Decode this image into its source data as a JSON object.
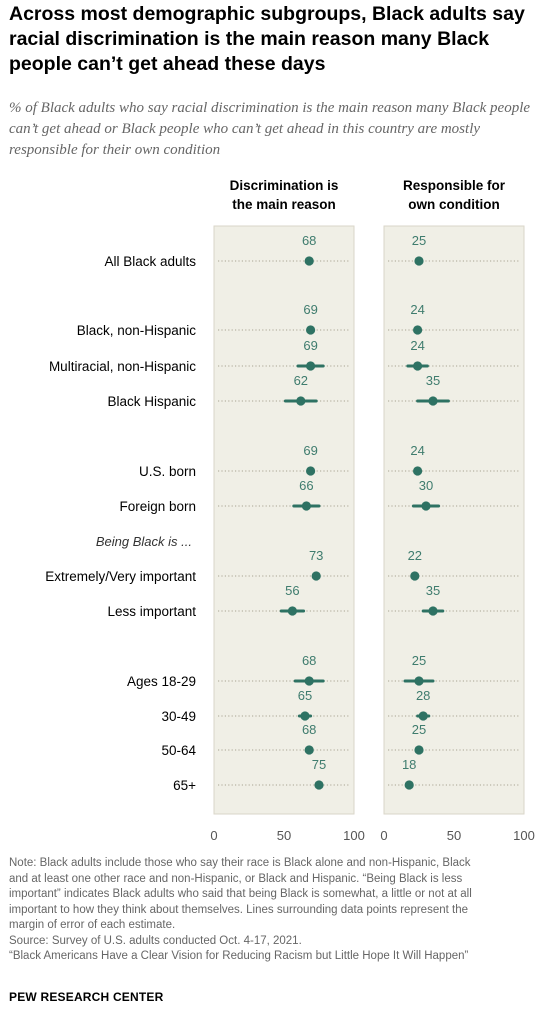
{
  "title": "Across most demographic subgroups, Black adults say racial discrimination is the main reason many Black people can’t get ahead these days",
  "subtitle": "% of Black adults who say racial discrimination is the main reason many Black people can’t get ahead or Black people who can’t get ahead in this country are mostly responsible for their own condition",
  "chart_data": {
    "type": "scatter",
    "panels": [
      {
        "name": "Discrimination is the main reason",
        "header_lines": [
          "Discrimination is",
          "the main reason"
        ]
      },
      {
        "name": "Responsible for own condition",
        "header_lines": [
          "Responsible for",
          "own condition"
        ]
      }
    ],
    "x_ticks": [
      "0",
      "50",
      "100"
    ],
    "xlim": [
      0,
      100
    ],
    "grid": false,
    "error_bars": true,
    "rows": [
      {
        "label": "All Black adults",
        "italic": false,
        "values": [
          68,
          25
        ],
        "err": [
          0,
          0
        ]
      },
      {
        "label": "Black, non-Hispanic",
        "italic": false,
        "values": [
          69,
          24
        ],
        "err": [
          0,
          0
        ]
      },
      {
        "label": "Multiracial, non-Hispanic",
        "italic": false,
        "values": [
          69,
          24
        ],
        "err": [
          9,
          7
        ]
      },
      {
        "label": "Black Hispanic",
        "italic": false,
        "values": [
          62,
          35
        ],
        "err": [
          11,
          11
        ]
      },
      {
        "label": "U.S. born",
        "italic": false,
        "values": [
          69,
          24
        ],
        "err": [
          0,
          0
        ]
      },
      {
        "label": "Foreign born",
        "italic": false,
        "values": [
          66,
          30
        ],
        "err": [
          9,
          9
        ]
      },
      {
        "label": "Being Black is ...",
        "italic": true,
        "values": null,
        "err": null
      },
      {
        "label": "Extremely/Very important",
        "italic": false,
        "values": [
          73,
          22
        ],
        "err": [
          0,
          0
        ]
      },
      {
        "label": "Less important",
        "italic": false,
        "values": [
          56,
          35
        ],
        "err": [
          8,
          7
        ]
      },
      {
        "label": "Ages 18-29",
        "italic": false,
        "values": [
          68,
          25
        ],
        "err": [
          10,
          10
        ]
      },
      {
        "label": "30-49",
        "italic": false,
        "values": [
          65,
          28
        ],
        "err": [
          4,
          4
        ]
      },
      {
        "label": "50-64",
        "italic": false,
        "values": [
          68,
          25
        ],
        "err": [
          0,
          0
        ]
      },
      {
        "label": "65+",
        "italic": false,
        "values": [
          75,
          18
        ],
        "err": [
          0,
          0
        ]
      }
    ],
    "colors": {
      "point": "#2e7263",
      "label": "#3f7c6e",
      "panel_bg": "#f0efe6",
      "panel_border": "#d9d6c8",
      "dots": "#a9a493"
    }
  },
  "note_lines": [
    "Note: Black adults include those who say their race is Black alone and non-Hispanic, Black",
    "and at least one other race and non-Hispanic, or Black and Hispanic. “Being Black is less",
    "important” indicates Black adults who said that being Black is somewhat, a little or not at all",
    "important to how they think about themselves. Lines surrounding data points represent the",
    "margin of error of each estimate.",
    "Source: Survey of U.S. adults conducted Oct. 4-17, 2021.",
    "“Black Americans Have a Clear Vision for Reducing Racism but Little Hope It Will Happen”"
  ],
  "brand": "PEW RESEARCH CENTER"
}
